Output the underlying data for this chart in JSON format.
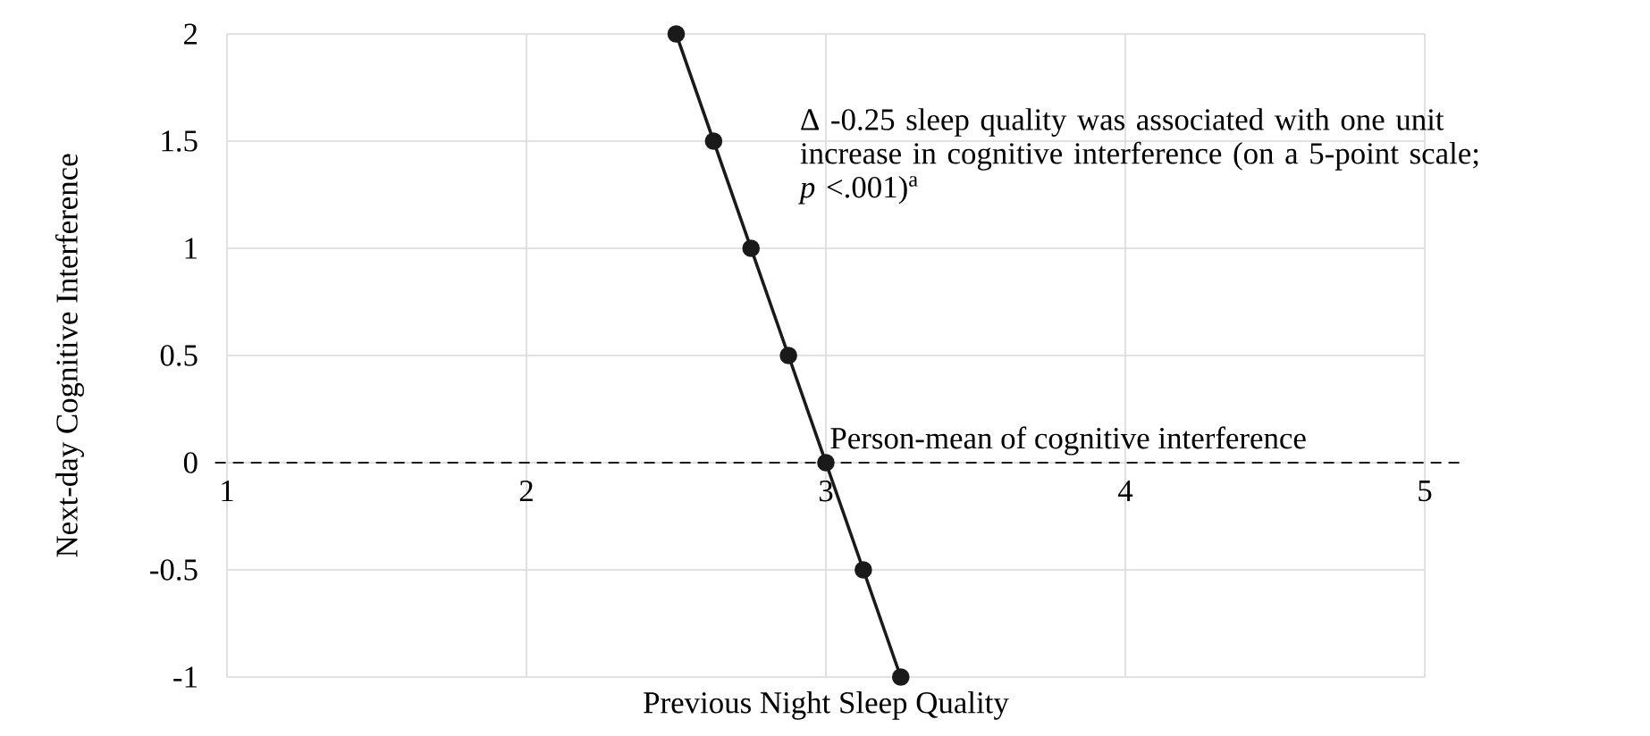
{
  "chart_data": {
    "type": "line",
    "xlabel": "Previous Night Sleep Quality",
    "ylabel": "Next-day Cognitive Interference",
    "x": [
      2.5,
      2.625,
      2.75,
      2.875,
      3,
      3.125,
      3.25
    ],
    "series": [
      {
        "color": "#1a1a1a",
        "values": [
          2,
          1.5,
          1,
          0.5,
          0,
          -0.5,
          -1
        ]
      }
    ],
    "marker": "circle",
    "line_style": "solid",
    "xlim": [
      1,
      5
    ],
    "ylim": [
      -1,
      2
    ],
    "xticks": [
      1,
      2,
      3,
      4,
      5
    ],
    "yticks": [
      -1,
      -0.5,
      0,
      0.5,
      1,
      1.5,
      2
    ],
    "grid": true,
    "ref_lines": [
      {
        "axis": "y",
        "value": 0,
        "label": "Person-mean of cognitive interference",
        "color": "#1a1a1a",
        "line_style": "dashed"
      }
    ],
    "annotations": [
      "Δ -0.25 sleep quality was associated with one unit increase in cognitive interference (on a 5-point scale; *p* <.001)$^{a}$"
    ]
  }
}
